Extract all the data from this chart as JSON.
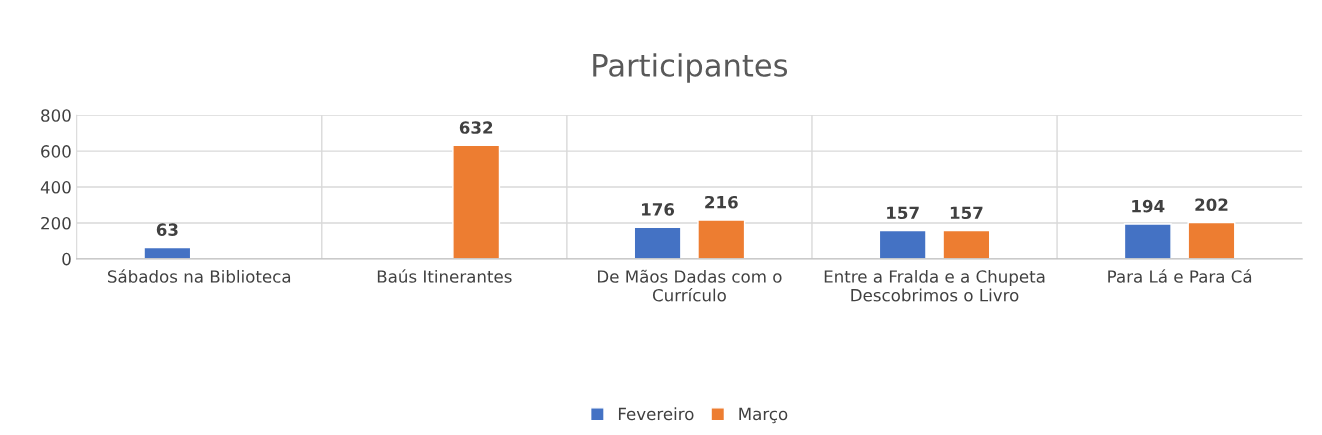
{
  "chart_data": {
    "type": "bar",
    "title": "Participantes",
    "categories": [
      "Sábados na Biblioteca",
      "Baús Itinerantes",
      "De Mãos Dadas com o Currículo",
      "Entre a Fralda e a Chupeta Descobrimos o Livro",
      "Para Lá e Para Cá"
    ],
    "series": [
      {
        "name": "Fevereiro",
        "color": "#4472c4",
        "values": [
          63,
          null,
          176,
          157,
          194
        ]
      },
      {
        "name": "Março",
        "color": "#ed7d31",
        "values": [
          null,
          632,
          216,
          157,
          202
        ]
      }
    ],
    "ylim": [
      0,
      800
    ],
    "yticks": [
      0,
      200,
      400,
      600,
      800
    ],
    "grid": "y",
    "legend": "bottom",
    "data_labels": true
  }
}
